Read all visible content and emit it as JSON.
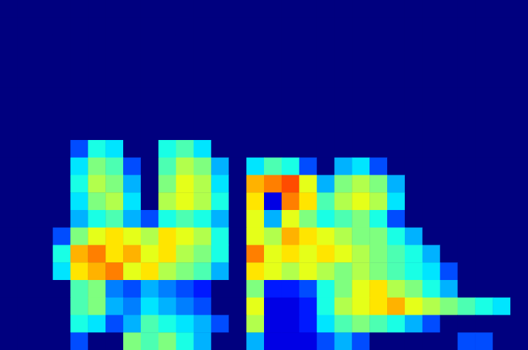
{
  "chart_data": {
    "type": "heatmap",
    "tick_labels": false,
    "grid": false,
    "xlim": [
      0,
      30
    ],
    "ylim": [
      0,
      20
    ],
    "zlim": [
      0,
      1
    ],
    "cells": [
      [
        0,
        0,
        0,
        0,
        0,
        0,
        0,
        0,
        0,
        0,
        0,
        0,
        0,
        0,
        0,
        0,
        0,
        0,
        0,
        0,
        0,
        0,
        0,
        0,
        0,
        0,
        0,
        0,
        0,
        0
      ],
      [
        0,
        0,
        0,
        0,
        0,
        0,
        0,
        0,
        0,
        0,
        0,
        0,
        0,
        0,
        0,
        0,
        0,
        0,
        0,
        0,
        0,
        0,
        0,
        0,
        0,
        0,
        0,
        0,
        0,
        0
      ],
      [
        0,
        0,
        0,
        0,
        0,
        0,
        0,
        0,
        0,
        0,
        0,
        0,
        0,
        0,
        0,
        0,
        0,
        0,
        0,
        0,
        0,
        0,
        0,
        0,
        0,
        0,
        0,
        0,
        0,
        0
      ],
      [
        0,
        0,
        0,
        0,
        0,
        0,
        0,
        0,
        0,
        0,
        0,
        0,
        0,
        0,
        0,
        0,
        0,
        0,
        0,
        0,
        0,
        0,
        0,
        0,
        0,
        0,
        0,
        0,
        0,
        0
      ],
      [
        0,
        0,
        0,
        0,
        0,
        0,
        0,
        0,
        0,
        0,
        0,
        0,
        0,
        0,
        0,
        0,
        0,
        0,
        0,
        0,
        0,
        0,
        0,
        0,
        0,
        0,
        0,
        0,
        0,
        0
      ],
      [
        0,
        0,
        0,
        0,
        0,
        0,
        0,
        0,
        0,
        0,
        0,
        0,
        0,
        0,
        0,
        0,
        0,
        0,
        0,
        0,
        0,
        0,
        0,
        0,
        0,
        0,
        0,
        0,
        0,
        0
      ],
      [
        0,
        0,
        0,
        0,
        0,
        0,
        0,
        0,
        0,
        0,
        0,
        0,
        0,
        0,
        0,
        0,
        0,
        0,
        0,
        0,
        0,
        0,
        0,
        0,
        0,
        0,
        0,
        0,
        0,
        0
      ],
      [
        0,
        0,
        0,
        0,
        0,
        0,
        0,
        0,
        0,
        0,
        0,
        0,
        0,
        0,
        0,
        0,
        0,
        0,
        0,
        0,
        0,
        0,
        0,
        0,
        0,
        0,
        0,
        0,
        0,
        0
      ],
      [
        0,
        0,
        0,
        0,
        0.2,
        0.4,
        0.35,
        0,
        0,
        0.4,
        0.45,
        0.35,
        0,
        0,
        0,
        0,
        0,
        0,
        0,
        0,
        0,
        0,
        0,
        0,
        0,
        0,
        0,
        0,
        0,
        0
      ],
      [
        0,
        0,
        0,
        0,
        0.35,
        0.5,
        0.45,
        0.2,
        0,
        0.45,
        0.55,
        0.5,
        0.3,
        0,
        0.35,
        0.45,
        0.4,
        0.2,
        0,
        0.3,
        0.35,
        0.2,
        0,
        0,
        0,
        0,
        0,
        0,
        0,
        0
      ],
      [
        0,
        0,
        0,
        0,
        0.4,
        0.55,
        0.5,
        0.3,
        0,
        0.5,
        0.6,
        0.55,
        0.35,
        0,
        0.7,
        0.75,
        0.8,
        0.6,
        0.3,
        0.5,
        0.55,
        0.5,
        0.3,
        0,
        0,
        0,
        0,
        0,
        0,
        0
      ],
      [
        0,
        0,
        0,
        0,
        0.35,
        0.5,
        0.55,
        0.35,
        0,
        0.55,
        0.6,
        0.55,
        0.4,
        0,
        0.65,
        0.1,
        0.75,
        0.65,
        0.45,
        0.55,
        0.6,
        0.55,
        0.35,
        0,
        0,
        0,
        0,
        0,
        0,
        0
      ],
      [
        0,
        0,
        0,
        0,
        0.3,
        0.4,
        0.45,
        0.3,
        0.2,
        0.4,
        0.45,
        0.4,
        0.3,
        0,
        0.6,
        0.3,
        0.6,
        0.5,
        0.4,
        0.45,
        0.5,
        0.4,
        0.2,
        0,
        0,
        0,
        0,
        0,
        0,
        0
      ],
      [
        0,
        0,
        0,
        0.2,
        0.5,
        0.6,
        0.65,
        0.6,
        0.55,
        0.65,
        0.6,
        0.55,
        0.4,
        0,
        0.6,
        0.55,
        0.7,
        0.65,
        0.6,
        0.55,
        0.5,
        0.5,
        0.4,
        0.3,
        0,
        0,
        0,
        0,
        0,
        0
      ],
      [
        0,
        0,
        0,
        0.4,
        0.7,
        0.75,
        0.65,
        0.7,
        0.6,
        0.65,
        0.55,
        0.5,
        0.4,
        0,
        0.75,
        0.6,
        0.65,
        0.6,
        0.65,
        0.6,
        0.55,
        0.5,
        0.45,
        0.4,
        0.3,
        0,
        0,
        0,
        0,
        0
      ],
      [
        0,
        0,
        0,
        0.35,
        0.65,
        0.7,
        0.75,
        0.6,
        0.65,
        0.55,
        0.5,
        0.45,
        0.3,
        0,
        0.65,
        0.6,
        0.55,
        0.6,
        0.55,
        0.5,
        0.55,
        0.5,
        0.45,
        0.4,
        0.35,
        0.2,
        0,
        0,
        0,
        0
      ],
      [
        0,
        0,
        0,
        0,
        0.45,
        0.5,
        0.25,
        0.2,
        0.3,
        0.25,
        0.2,
        0.15,
        0,
        0,
        0.5,
        0.15,
        0.15,
        0.2,
        0.4,
        0.5,
        0.6,
        0.65,
        0.55,
        0.5,
        0.4,
        0.3,
        0,
        0,
        0,
        0
      ],
      [
        0,
        0,
        0,
        0,
        0.45,
        0.5,
        0.3,
        0.25,
        0.35,
        0.3,
        0.25,
        0.2,
        0,
        0,
        0.6,
        0.1,
        0.1,
        0.15,
        0.4,
        0.55,
        0.6,
        0.65,
        0.7,
        0.6,
        0.55,
        0.5,
        0.45,
        0.4,
        0.35,
        0
      ],
      [
        0,
        0,
        0,
        0,
        0.4,
        0.35,
        0.2,
        0.3,
        0.45,
        0.4,
        0.35,
        0.3,
        0.2,
        0,
        0.55,
        0.1,
        0.1,
        0.15,
        0.35,
        0.45,
        0.5,
        0.45,
        0.4,
        0.3,
        0.2,
        0,
        0,
        0,
        0,
        0
      ],
      [
        0,
        0,
        0,
        0,
        0.2,
        0,
        0,
        0.5,
        0.45,
        0.5,
        0.4,
        0.3,
        0,
        0,
        0.3,
        0.1,
        0.1,
        0.1,
        0.2,
        0.3,
        0.2,
        0,
        0,
        0,
        0,
        0,
        0.2,
        0.2,
        0,
        0
      ]
    ]
  }
}
